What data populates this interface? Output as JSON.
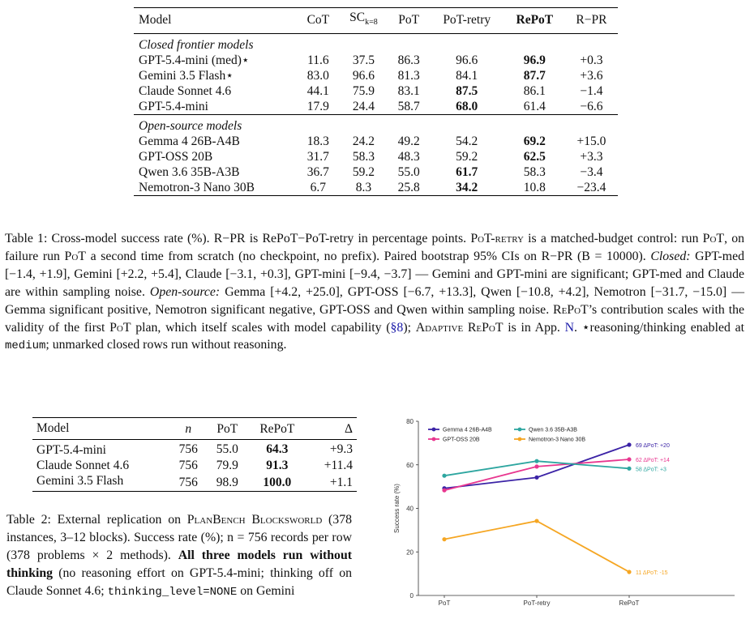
{
  "table1": {
    "headers": [
      "Model",
      "CoT",
      "SC",
      "k=8",
      "PoT",
      "PoT-retry",
      "RePoT",
      "R−PR"
    ],
    "groups": [
      {
        "title": "Closed frontier models",
        "rows": [
          {
            "model": "GPT-5.4-mini (med)⋆",
            "cot": "11.6",
            "sc": "37.5",
            "pot": "86.3",
            "retry": "96.6",
            "repot": "96.9",
            "diff": "+0.3",
            "bold": "repot"
          },
          {
            "model": "Gemini 3.5 Flash⋆",
            "cot": "83.0",
            "sc": "96.6",
            "pot": "81.3",
            "retry": "84.1",
            "repot": "87.7",
            "diff": "+3.6",
            "bold": "repot"
          },
          {
            "model": "Claude Sonnet 4.6",
            "cot": "44.1",
            "sc": "75.9",
            "pot": "83.1",
            "retry": "87.5",
            "repot": "86.1",
            "diff": "−1.4",
            "bold": "retry"
          },
          {
            "model": "GPT-5.4-mini",
            "cot": "17.9",
            "sc": "24.4",
            "pot": "58.7",
            "retry": "68.0",
            "repot": "61.4",
            "diff": "−6.6",
            "bold": "retry"
          }
        ]
      },
      {
        "title": "Open-source models",
        "rows": [
          {
            "model": "Gemma 4 26B-A4B",
            "cot": "18.3",
            "sc": "24.2",
            "pot": "49.2",
            "retry": "54.2",
            "repot": "69.2",
            "diff": "+15.0",
            "bold": "repot"
          },
          {
            "model": "GPT-OSS 20B",
            "cot": "31.7",
            "sc": "58.3",
            "pot": "48.3",
            "retry": "59.2",
            "repot": "62.5",
            "diff": "+3.3",
            "bold": "repot"
          },
          {
            "model": "Qwen 3.6 35B-A3B",
            "cot": "36.7",
            "sc": "59.2",
            "pot": "55.0",
            "retry": "61.7",
            "repot": "58.3",
            "diff": "−3.4",
            "bold": "retry"
          },
          {
            "model": "Nemotron-3 Nano 30B",
            "cot": "6.7",
            "sc": "8.3",
            "pot": "25.8",
            "retry": "34.2",
            "repot": "10.8",
            "diff": "−23.4",
            "bold": "retry"
          }
        ]
      }
    ]
  },
  "caption1": {
    "label": "Table 1:",
    "s1": " Cross-model success rate (%). R−PR is RePoT−PoT-retry in percentage points. ",
    "s2": "PoT-retry",
    "s3": " is a matched-budget control: run ",
    "s4": "PoT",
    "s5": ", on failure run ",
    "s6": "PoT",
    "s7": " a second time from scratch (no checkpoint, no prefix). Paired bootstrap 95% CIs on R−PR (B = 10000). ",
    "closed": "Closed:",
    "s8": " GPT-med [−1.4, +1.9], Gemini [+2.2, +5.4], Claude [−3.1, +0.3], GPT-mini [−9.4, −3.7] — Gemini and GPT-mini are significant; GPT-med and Claude are within sampling noise. ",
    "open": "Open-source:",
    "s9": " Gemma [+4.2, +25.0], GPT-OSS [−6.7, +13.3], Qwen [−10.8, +4.2], Nemotron [−31.7, −15.0] — Gemma significant positive, Nemotron significant negative, GPT-OSS and Qwen within sampling noise. ",
    "s10": "RePoT",
    "s11": "’s contribution scales with the validity of the first ",
    "s12": "PoT",
    "s13": " plan, which itself scales with model capability (",
    "ref1": "§8",
    "s14": "); ",
    "s15": "Adaptive RePoT",
    "s16": " is in App. ",
    "ref2": "N",
    "s17": ". ⋆reasoning/thinking enabled at ",
    "mono1": "medium",
    "s18": "; unmarked closed rows run without reasoning."
  },
  "table2": {
    "headers": [
      "Model",
      "n",
      "PoT",
      "RePoT",
      "Δ"
    ],
    "rows": [
      {
        "model": "GPT-5.4-mini",
        "n": "756",
        "pot": "55.0",
        "repot": "64.3",
        "delta": "+9.3"
      },
      {
        "model": "Claude Sonnet 4.6",
        "n": "756",
        "pot": "79.9",
        "repot": "91.3",
        "delta": "+11.4"
      },
      {
        "model": "Gemini 3.5 Flash",
        "n": "756",
        "pot": "98.9",
        "repot": "100.0",
        "delta": "+1.1"
      }
    ]
  },
  "caption2": {
    "label": "Table 2:",
    "s1": " External replication on ",
    "s2": "PlanBench Blocksworld",
    "s3": " (378 instances, 3–12 blocks). Success rate (%); n = 756 records per row (378 problems × 2 methods). ",
    "bold1": "All three models run without thinking",
    "s4": " (no reasoning effort on GPT-5.4-mini; thinking off on Claude Sonnet 4.6; ",
    "mono1": "thinking_level=NONE",
    "s5": " on Gemini"
  },
  "chart_data": {
    "type": "line",
    "x": [
      "PoT",
      "PoT-retry",
      "RePoT"
    ],
    "ylabel": "Success rate (%)",
    "ylim": [
      0,
      80
    ],
    "yticks": [
      "0",
      "20",
      "40",
      "60",
      "80"
    ],
    "grid": false,
    "legend_position": "top-left",
    "series": [
      {
        "name": "Gemma 4 26B-A4B",
        "values": [
          49.2,
          54.2,
          69.2
        ],
        "color": "#3b23a6",
        "end_label": "69  ΔPoT: +20"
      },
      {
        "name": "GPT-OSS 20B",
        "values": [
          48.3,
          59.2,
          62.5
        ],
        "color": "#e8368f",
        "end_label": "62  ΔPoT: +14"
      },
      {
        "name": "Qwen 3.6 35B-A3B",
        "values": [
          55.0,
          61.7,
          58.3
        ],
        "color": "#2ea6a0",
        "end_label": "58  ΔPoT: +3"
      },
      {
        "name": "Nemotron-3 Nano 30B",
        "values": [
          25.8,
          34.2,
          10.8
        ],
        "color": "#f5a623",
        "end_label": "11  ΔPoT: -15"
      }
    ]
  }
}
